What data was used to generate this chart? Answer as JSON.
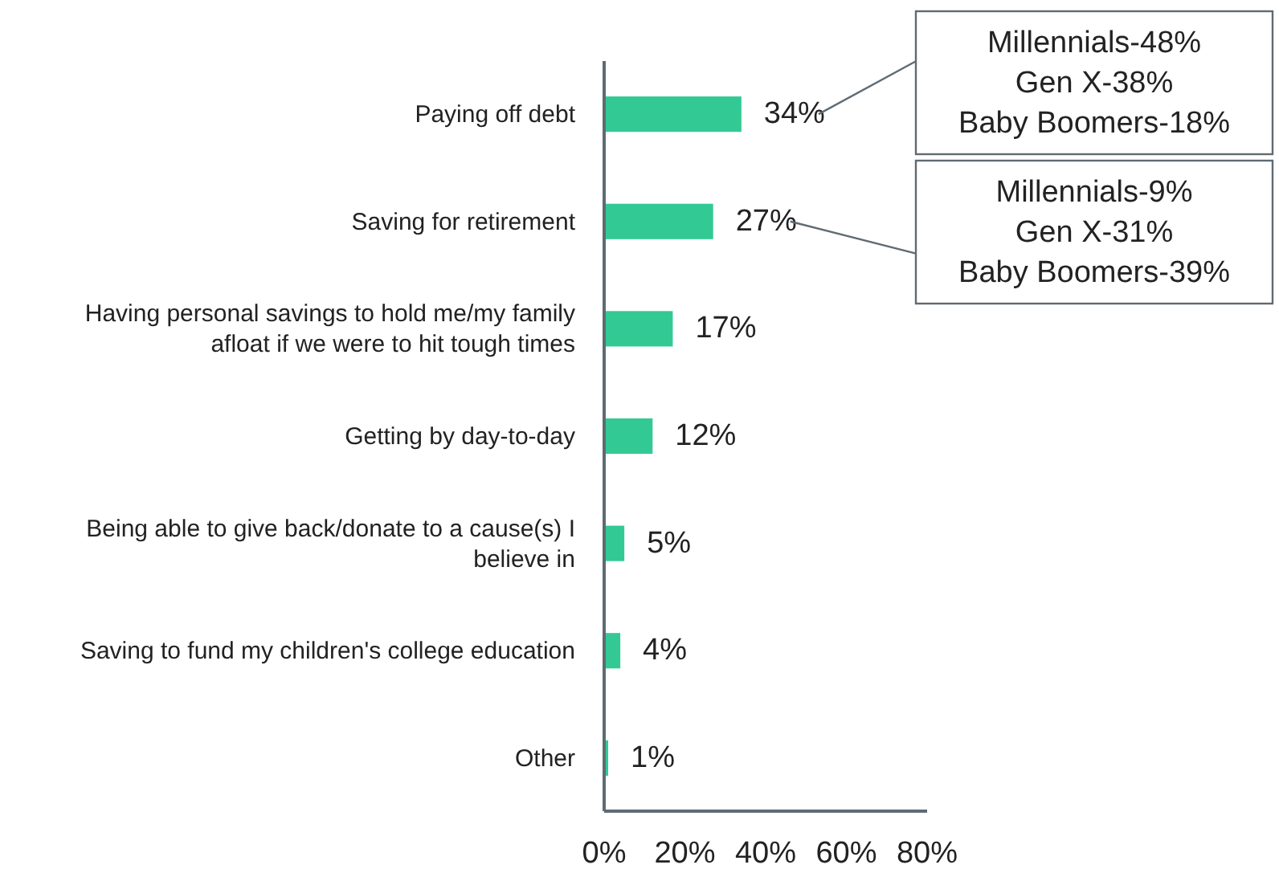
{
  "chart_data": {
    "type": "bar",
    "orientation": "horizontal",
    "categories": [
      "Paying off debt",
      "Saving for retirement",
      "Having personal savings to hold me/my family afloat if we were to hit tough times",
      "Getting by day-to-day",
      "Being able to give back/donate to a cause(s) I believe in",
      "Saving to fund my children's college education",
      "Other"
    ],
    "values": [
      34,
      27,
      17,
      12,
      5,
      4,
      1
    ],
    "value_labels": [
      "34%",
      "27%",
      "17%",
      "12%",
      "5%",
      "4%",
      "1%"
    ],
    "color": "#33c995",
    "xlim": [
      0,
      80
    ],
    "xticks": [
      {
        "value": 0,
        "label": "0%"
      },
      {
        "value": 20,
        "label": "20%"
      },
      {
        "value": 40,
        "label": "40%"
      },
      {
        "value": 60,
        "label": "60%"
      },
      {
        "value": 80,
        "label": "80%"
      }
    ],
    "grid": false,
    "annotations": [
      "Millennials-48%\nGen X-38%\nBaby Boomers-18%",
      "Millennials-9%\nGen X-31%\nBaby Boomers-39%"
    ]
  }
}
